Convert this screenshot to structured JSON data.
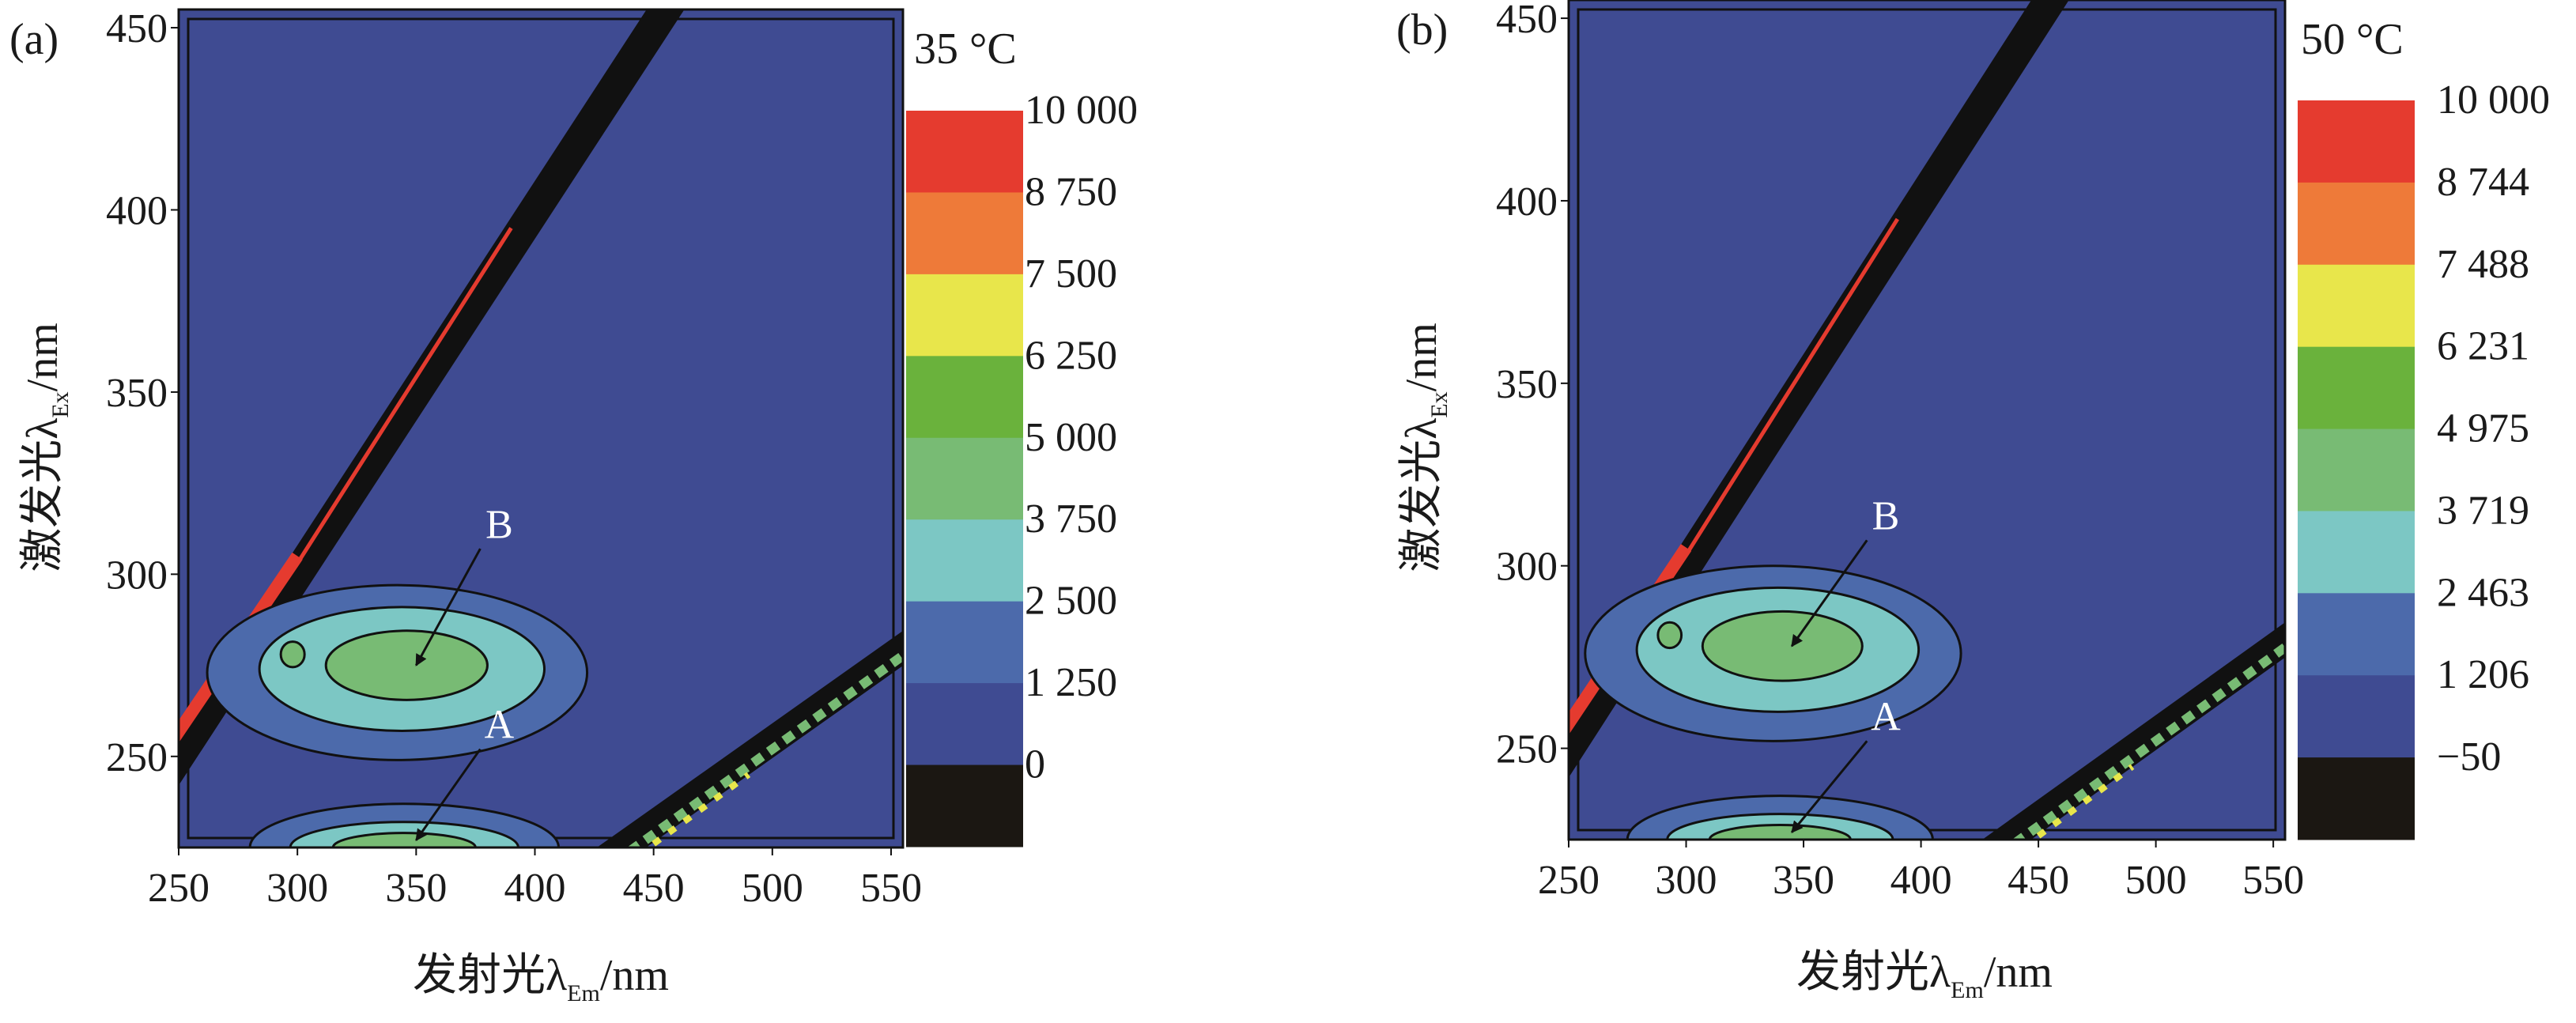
{
  "colors": {
    "bands": [
      "#1b1712",
      "#3f4b92",
      "#4c6aab",
      "#7cc7c4",
      "#78bb74",
      "#6ab23c",
      "#e8e64b",
      "#ee7a39",
      "#e53b2f"
    ],
    "background": "#3f4b92",
    "scatter": "#111111",
    "arrow": "#111111"
  },
  "chart_data": [
    {
      "type": "heatmap",
      "panel_label": "(a)",
      "temperature": "35 °C",
      "xlabel": {
        "main": "发射光λ",
        "sub": "Em",
        "unit": "/nm"
      },
      "ylabel": {
        "main": "激发光λ",
        "sub": "Ex",
        "unit": "/nm"
      },
      "xlim": [
        250,
        555
      ],
      "ylim": [
        225,
        455
      ],
      "x_ticks": [
        "250",
        "300",
        "350",
        "400",
        "450",
        "500",
        "550"
      ],
      "x_tick_values": [
        250,
        300,
        350,
        400,
        450,
        500,
        550
      ],
      "y_ticks": [
        "250",
        "300",
        "350",
        "400",
        "450"
      ],
      "y_tick_values": [
        250,
        300,
        350,
        400,
        450
      ],
      "colorbar_labels": [
        "10 000",
        "8 750",
        "7 500",
        "6 250",
        "5 000",
        "3 750",
        "2 500",
        "1 250",
        "0"
      ],
      "peaks": [
        {
          "label": "B",
          "em": 350,
          "ex": 275,
          "level": 4375,
          "text_at": [
            385,
            310
          ]
        },
        {
          "label": "A",
          "em": 350,
          "ex": 227,
          "level": 5000,
          "text_at": [
            385,
            255
          ]
        }
      ]
    },
    {
      "type": "heatmap",
      "panel_label": "(b)",
      "temperature": "50 °C",
      "xlabel": {
        "main": "发射光λ",
        "sub": "Em",
        "unit": "/nm"
      },
      "ylabel": {
        "main": "激发光λ",
        "sub": "Ex",
        "unit": "/nm"
      },
      "xlim": [
        250,
        555
      ],
      "ylim": [
        225,
        455
      ],
      "x_ticks": [
        "250",
        "300",
        "350",
        "400",
        "450",
        "500",
        "550"
      ],
      "x_tick_values": [
        250,
        300,
        350,
        400,
        450,
        500,
        550
      ],
      "y_ticks": [
        "250",
        "300",
        "350",
        "400",
        "450"
      ],
      "y_tick_values": [
        250,
        300,
        350,
        400,
        450
      ],
      "colorbar_labels": [
        "10 000",
        "8 744",
        "7 488",
        "6 231",
        "4 975",
        "3 719",
        "2 463",
        "1 206",
        "−50"
      ],
      "peaks": [
        {
          "label": "B",
          "em": 345,
          "ex": 278,
          "level": 4975,
          "text_at": [
            385,
            310
          ]
        },
        {
          "label": "A",
          "em": 345,
          "ex": 227,
          "level": 3719,
          "text_at": [
            385,
            255
          ]
        }
      ]
    }
  ]
}
